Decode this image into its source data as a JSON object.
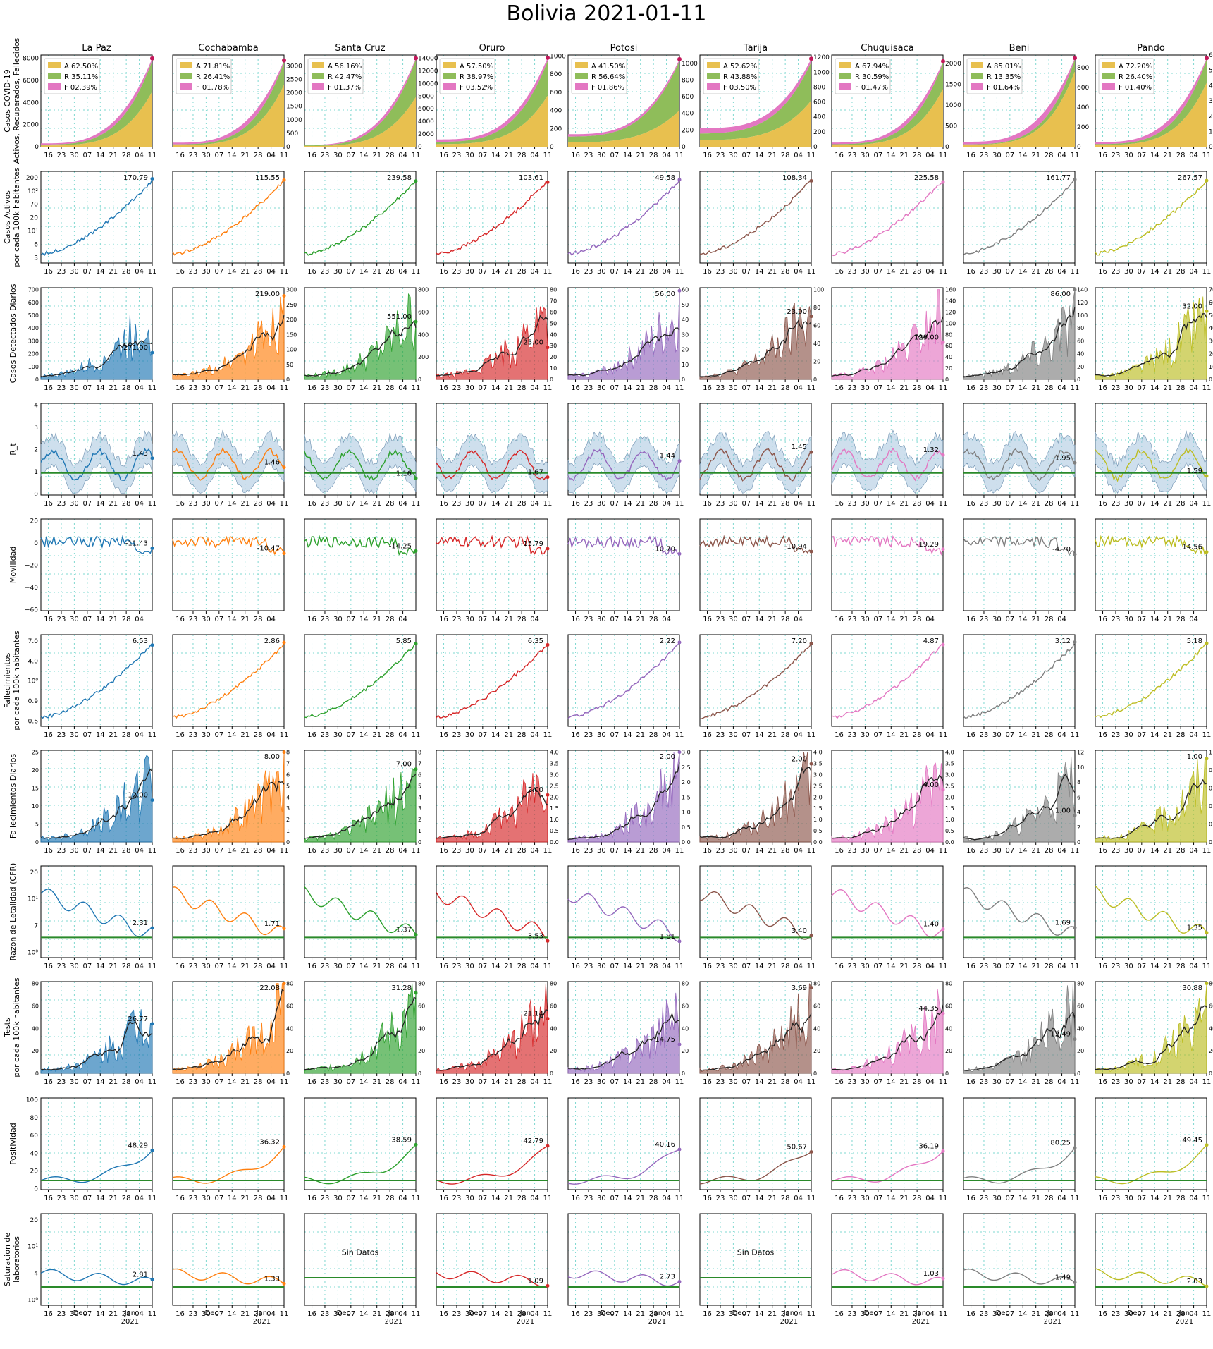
{
  "title": "Bolivia 2021-01-11",
  "departments": [
    "La Paz",
    "Cochabamba",
    "Santa Cruz",
    "Oruro",
    "Potosi",
    "Tarija",
    "Chuquisaca",
    "Beni",
    "Pando"
  ],
  "colors": [
    "#1f77b4",
    "#ff7f0e",
    "#2ca02c",
    "#d62728",
    "#9467bd",
    "#8c564b",
    "#e377c2",
    "#7f7f7f",
    "#bcbd22"
  ],
  "stack_colors": {
    "A": "#e8c04f",
    "R": "#8fbd5a",
    "F": "#e377c2"
  },
  "no_data_text": "Sin Datos",
  "x_ticks": [
    "16",
    "23",
    "30",
    "07",
    "14",
    "21",
    "28",
    "04",
    "11"
  ],
  "x_ticks_short": [
    "16",
    "23",
    "30",
    "07",
    "14",
    "21",
    "28",
    "04"
  ],
  "month_labels": [
    "Dec",
    "Jan\n2021"
  ],
  "chart_data": [
    {
      "type": "area",
      "row_label": "Casos COVID-19\nActivos, Recuperados, Fallecidos",
      "x": "2020-11-12 .. 2021-01-11",
      "legend_prefix": [
        "A",
        "R",
        "F"
      ],
      "legend": [
        [
          "62.50%",
          "35.11%",
          "02.39%"
        ],
        [
          "71.81%",
          "26.41%",
          "01.78%"
        ],
        [
          "56.16%",
          "42.47%",
          "01.37%"
        ],
        [
          "57.50%",
          "38.97%",
          "03.52%"
        ],
        [
          "41.50%",
          "56.64%",
          "01.86%"
        ],
        [
          "52.62%",
          "43.88%",
          "03.50%"
        ],
        [
          "67.94%",
          "30.59%",
          "01.47%"
        ],
        [
          "85.01%",
          "13.35%",
          "01.64%"
        ],
        [
          "72.20%",
          "26.40%",
          "01.40%"
        ]
      ],
      "y_ticks": [
        [
          "0",
          "2000",
          "4000",
          "6000",
          "8000"
        ],
        [
          "0",
          "500",
          "1000",
          "1500",
          "2000",
          "2500",
          "3000"
        ],
        [
          "0",
          "2000",
          "4000",
          "6000",
          "8000",
          "10000",
          "12000",
          "14000"
        ],
        [
          "0",
          "200",
          "400",
          "600",
          "800",
          "1000"
        ],
        [
          "0",
          "200",
          "400",
          "600",
          "800",
          "1000"
        ],
        [
          "0",
          "200",
          "400",
          "600",
          "800",
          "1000",
          "1200"
        ],
        [
          "0",
          "500",
          "1000",
          "1500",
          "2000"
        ],
        [
          "0",
          "200",
          "400",
          "600",
          "800"
        ],
        [
          "0",
          "100",
          "200",
          "300",
          "400",
          "500",
          "600"
        ]
      ],
      "ylim": [
        [
          0,
          8300
        ],
        [
          0,
          3400
        ],
        [
          0,
          14500
        ],
        [
          0,
          1010
        ],
        [
          0,
          1100
        ],
        [
          0,
          1230
        ],
        [
          0,
          2200
        ],
        [
          0,
          930
        ],
        [
          0,
          600
        ]
      ],
      "total_end": [
        8000,
        3200,
        14000,
        980,
        1050,
        1180,
        2050,
        900,
        580
      ],
      "total_start": [
        300,
        150,
        300,
        80,
        150,
        250,
        100,
        50,
        30
      ]
    },
    {
      "type": "line",
      "row_label": "Casos Activos\npor cada 100k habitantes",
      "log": true,
      "annotations": [
        "170.79",
        "115.55",
        "239.58",
        "103.61",
        "49.58",
        "108.34",
        "225.58",
        "161.77",
        "267.57"
      ],
      "y_ticks_left": [
        "3",
        "6",
        "10¹",
        "20",
        "70",
        "10²",
        "200"
      ]
    },
    {
      "type": "bar",
      "row_label": "Casos Detectados Diarios",
      "annotations": [
        "271.00",
        "219.00",
        "551.00",
        "25.00",
        "56.00",
        "23.00",
        "129.00",
        "86.00",
        "32.00"
      ],
      "y_ticks": [
        [
          "0",
          "100",
          "200",
          "300",
          "400",
          "500",
          "600",
          "700"
        ],
        [
          "0",
          "50",
          "100",
          "150",
          "200",
          "250",
          "300"
        ],
        [
          "0",
          "200",
          "400",
          "600",
          "800"
        ],
        [
          "0",
          "10",
          "20",
          "30",
          "40",
          "50",
          "60",
          "70",
          "80"
        ],
        [
          "0",
          "10",
          "20",
          "30",
          "40",
          "50",
          "60"
        ],
        [
          "0",
          "20",
          "40",
          "60",
          "80",
          "100"
        ],
        [
          "0",
          "20",
          "40",
          "60",
          "80",
          "100",
          "120",
          "140",
          "160"
        ],
        [
          "0",
          "20",
          "40",
          "60",
          "80",
          "100",
          "120",
          "140"
        ],
        [
          "0",
          "10",
          "20",
          "30",
          "40",
          "50",
          "60",
          "70"
        ]
      ]
    },
    {
      "type": "line",
      "row_label": "R_t",
      "annotations": [
        "1.43",
        "1.46",
        "1.16",
        "1.67",
        "1.44",
        "1.45",
        "1.32",
        "1.95",
        "1.59"
      ],
      "y_ticks": [
        "0",
        "1",
        "2",
        "3",
        "4"
      ],
      "threshold": 1
    },
    {
      "type": "line",
      "row_label": "Movilidad",
      "annotations": [
        "-11.43",
        "-10.47",
        "-14.25",
        "-15.79",
        "-10.70",
        "-10.94",
        "-19.29",
        "-4.70",
        "-14.56"
      ],
      "y_ticks": [
        "20",
        "0",
        "−20",
        "−40",
        "−60"
      ]
    },
    {
      "type": "line",
      "row_label": "Fallecimientos\npor cada 100k habitantes",
      "log": true,
      "annotations": [
        "6.53",
        "2.86",
        "5.85",
        "6.35",
        "2.22",
        "7.20",
        "4.87",
        "3.12",
        "5.18"
      ],
      "y_ticks_left": [
        "0.6",
        "0.9",
        "10⁰",
        "4.0",
        "7.0"
      ]
    },
    {
      "type": "bar",
      "row_label": "Fallecimientos Diarios",
      "annotations": [
        "12.00",
        "8.00",
        "7.00",
        "2.00",
        "2.00",
        "2.00",
        "4.00",
        "1.00",
        "1.00"
      ],
      "y_ticks": [
        [
          "0",
          "5",
          "10",
          "15",
          "20",
          "25"
        ],
        [
          "0",
          "1",
          "2",
          "3",
          "4",
          "5",
          "6",
          "7",
          "8"
        ],
        [
          "0",
          "1",
          "2",
          "3",
          "4",
          "5",
          "6",
          "7",
          "8"
        ],
        [
          "0.0",
          "0.5",
          "1.0",
          "1.5",
          "2.0",
          "2.5",
          "3.0",
          "3.5",
          "4.0"
        ],
        [
          "0.0",
          "0.5",
          "1.0",
          "1.5",
          "2.0",
          "2.5",
          "3.0"
        ],
        [
          "0.0",
          "0.5",
          "1.0",
          "1.5",
          "2.0",
          "2.5",
          "3.0",
          "3.5",
          "4.0"
        ],
        [
          "0.0",
          "0.5",
          "1.0",
          "1.5",
          "2.0",
          "2.5",
          "3.0",
          "3.5",
          "4.0"
        ],
        [
          "0",
          "2",
          "4",
          "6",
          "8",
          "10",
          "12"
        ],
        [
          "0.0",
          "0.2",
          "0.4",
          "0.6",
          "0.8",
          "1.0"
        ]
      ]
    },
    {
      "type": "line",
      "row_label": "Razon de Letalidad (CFR)",
      "log": true,
      "annotations": [
        "2.31",
        "1.71",
        "1.37",
        "3.53",
        "1.81",
        "3.40",
        "1.40",
        "1.69",
        "1.35"
      ],
      "y_ticks_left": [
        "10⁰",
        "7",
        "10¹",
        "20"
      ]
    },
    {
      "type": "bar",
      "row_label": "Tests\npor cada 100k habitantes",
      "annotations": [
        "26.77",
        "22.08",
        "31.28",
        "21.14",
        "14.75",
        "3.69",
        "44.35",
        "12.49",
        "30.88"
      ],
      "y_ticks": [
        "0",
        "20",
        "40",
        "60",
        "80"
      ]
    },
    {
      "type": "line",
      "row_label": "Positividad",
      "annotations": [
        "48.29",
        "36.32",
        "38.59",
        "42.79",
        "40.16",
        "50.67",
        "36.19",
        "80.25",
        "49.45"
      ],
      "y_ticks": [
        "0",
        "20",
        "40",
        "60",
        "80",
        "100"
      ]
    },
    {
      "type": "line",
      "row_label": "Saturacion de\nlaboratorios",
      "log": true,
      "annotations": [
        "2.81",
        "1.33",
        "",
        "1.09",
        "2.73",
        "",
        "1.03",
        "1.49",
        "2.03"
      ],
      "no_data": [
        false,
        false,
        true,
        false,
        false,
        true,
        false,
        false,
        false
      ],
      "y_ticks_left": [
        "10⁰",
        "4",
        "10¹",
        "20"
      ]
    }
  ]
}
